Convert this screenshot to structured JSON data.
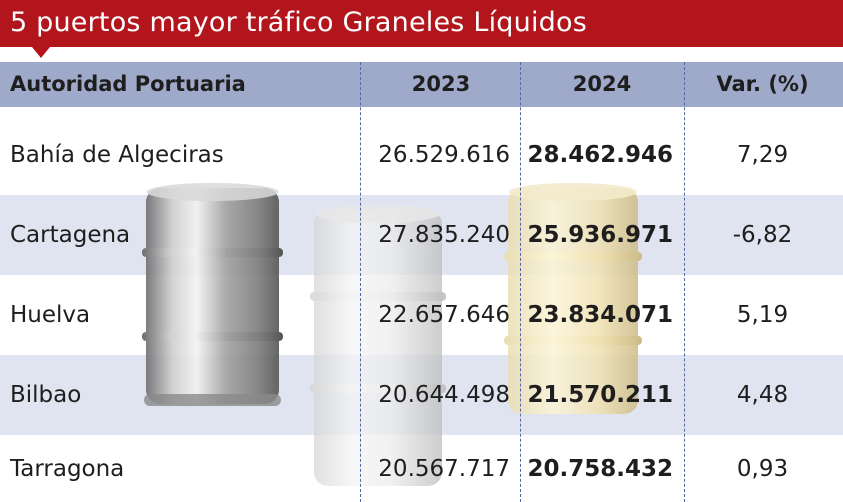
{
  "title": "5 puertos mayor tráfico Graneles Líquidos",
  "header": {
    "col_name": "Autoridad Portuaria",
    "col_2023": "2023",
    "col_2024": "2024",
    "col_var": "Var. (%)"
  },
  "rows": [
    {
      "name": "Bahía de Algeciras",
      "v2023": "26.529.616",
      "v2024": "28.462.946",
      "var": "7,29"
    },
    {
      "name": "Cartagena",
      "v2023": "27.835.240",
      "v2024": "25.936.971",
      "var": "-6,82"
    },
    {
      "name": "Huelva",
      "v2023": "22.657.646",
      "v2024": "23.834.071",
      "var": "5,19"
    },
    {
      "name": "Bilbao",
      "v2023": "20.644.498",
      "v2024": "21.570.211",
      "var": "4,48"
    },
    {
      "name": "Tarragona",
      "v2023": "20.567.717",
      "v2024": "20.758.432",
      "var": "0,93"
    }
  ],
  "colors": {
    "title_bg": "#b3151c",
    "header_bg": "#9fa9c9",
    "stripe_bg": "#dfe4f0",
    "divider": "#5468a6"
  },
  "illustration": {
    "icons": [
      "steel-barrel-icon",
      "white-barrel-icon",
      "gold-barrel-icon"
    ]
  }
}
